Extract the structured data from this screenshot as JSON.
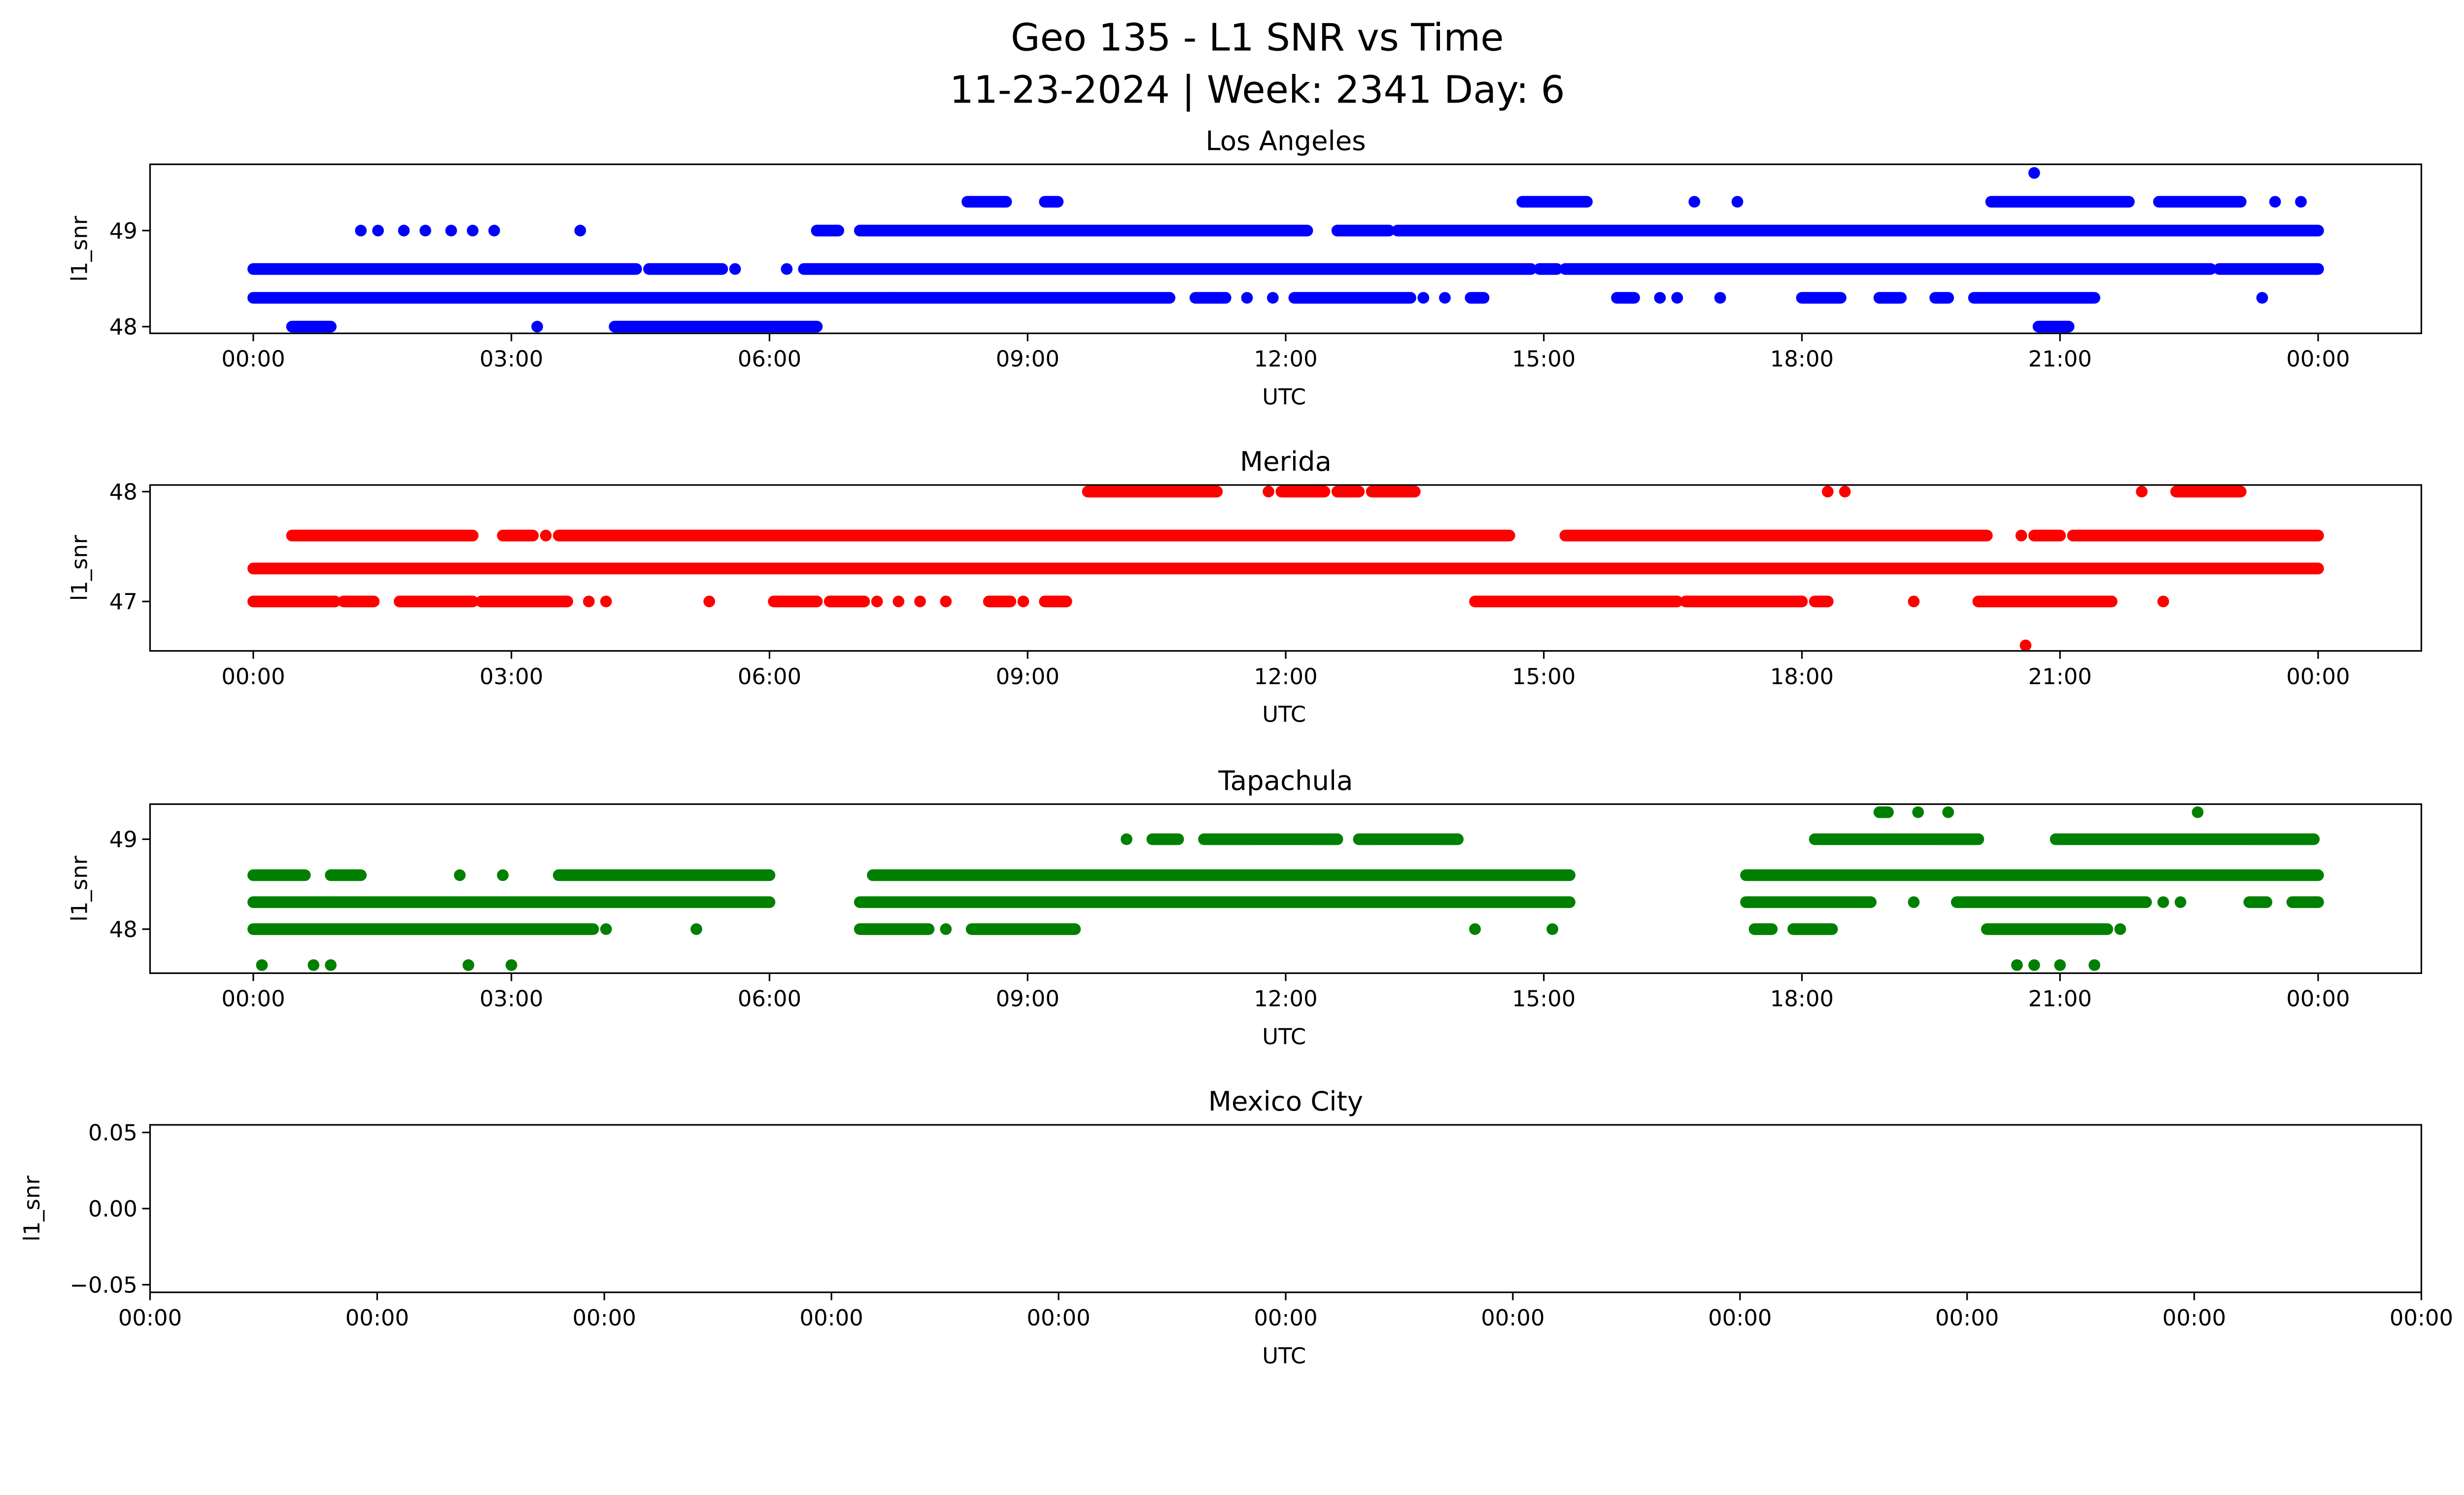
{
  "title_line1": "Geo 135 - L1 SNR vs Time",
  "title_line2": "11-23-2024 | Week: 2341 Day: 6",
  "chart_data": [
    {
      "type": "scatter",
      "title": "Los Angeles",
      "xlabel": "UTC",
      "ylabel": "l1_snr",
      "color": "#0000ff",
      "xlim": [
        -1.2,
        25.2
      ],
      "ylim": [
        47.93,
        49.69
      ],
      "xticks": [
        0,
        3,
        6,
        9,
        12,
        15,
        18,
        21,
        24
      ],
      "xtick_labels": [
        "00:00",
        "03:00",
        "06:00",
        "09:00",
        "12:00",
        "15:00",
        "18:00",
        "21:00",
        "00:00"
      ],
      "yticks": [
        48,
        49
      ],
      "ytick_labels": [
        "48",
        "49"
      ],
      "series": [
        {
          "level": 48.0,
          "intervals": [
            [
              0.45,
              0.9
            ],
            [
              4.2,
              6.55
            ],
            [
              20.75,
              21.1
            ]
          ],
          "points": [
            3.3
          ]
        },
        {
          "level": 48.3,
          "intervals": [
            [
              0,
              7.4
            ],
            [
              7.4,
              10.65
            ],
            [
              10.95,
              11.3
            ],
            [
              12.1,
              13.45
            ],
            [
              14.15,
              14.3
            ],
            [
              15.85,
              16.05
            ],
            [
              18.0,
              18.45
            ],
            [
              18.9,
              19.15
            ],
            [
              19.55,
              19.7
            ],
            [
              20.0,
              21.4
            ]
          ],
          "points": [
            11.55,
            11.85,
            13.6,
            13.85,
            16.35,
            16.55,
            17.05,
            23.35
          ]
        },
        {
          "level": 48.6,
          "intervals": [
            [
              0,
              4.45
            ],
            [
              4.6,
              5.45
            ],
            [
              6.4,
              14.85
            ],
            [
              14.95,
              15.15
            ],
            [
              15.25,
              22.75
            ],
            [
              22.85,
              24
            ]
          ],
          "points": [
            5.6,
            6.2
          ]
        },
        {
          "level": 49.0,
          "intervals": [
            [
              6.55,
              6.8
            ],
            [
              7.05,
              12.25
            ],
            [
              12.6,
              13.2
            ],
            [
              13.3,
              24
            ]
          ],
          "points": [
            1.25,
            1.45,
            1.75,
            2.0,
            2.3,
            2.55,
            2.8,
            3.8
          ]
        },
        {
          "level": 49.3,
          "intervals": [
            [
              8.3,
              8.75
            ],
            [
              9.2,
              9.35
            ],
            [
              14.75,
              15.5
            ],
            [
              20.2,
              21.8
            ],
            [
              22.15,
              23.1
            ]
          ],
          "points": [
            16.75,
            17.25,
            23.5,
            23.8
          ]
        },
        {
          "level": 49.6,
          "intervals": [],
          "points": [
            20.7
          ]
        }
      ]
    },
    {
      "type": "scatter",
      "title": "Merida",
      "xlabel": "UTC",
      "ylabel": "l1_snr",
      "color": "#ff0000",
      "xlim": [
        -1.2,
        25.2
      ],
      "ylim": [
        46.55,
        48.06
      ],
      "xticks": [
        0,
        3,
        6,
        9,
        12,
        15,
        18,
        21,
        24
      ],
      "xtick_labels": [
        "00:00",
        "03:00",
        "06:00",
        "09:00",
        "12:00",
        "15:00",
        "18:00",
        "21:00",
        "00:00"
      ],
      "yticks": [
        47,
        48
      ],
      "ytick_labels": [
        "47",
        "48"
      ],
      "series": [
        {
          "level": 46.6,
          "intervals": [],
          "points": [
            20.6
          ]
        },
        {
          "level": 47.0,
          "intervals": [
            [
              0,
              0.95
            ],
            [
              1.05,
              1.4
            ],
            [
              1.7,
              2.55
            ],
            [
              2.65,
              3.65
            ],
            [
              6.05,
              6.55
            ],
            [
              6.7,
              7.1
            ],
            [
              8.55,
              8.8
            ],
            [
              9.2,
              9.45
            ],
            [
              14.2,
              16.55
            ],
            [
              16.65,
              18.0
            ],
            [
              18.15,
              18.3
            ],
            [
              20.05,
              21.6
            ]
          ],
          "points": [
            3.9,
            4.1,
            5.3,
            7.25,
            7.5,
            7.75,
            8.05,
            8.95,
            19.3,
            22.2
          ]
        },
        {
          "level": 47.3,
          "intervals": [
            [
              0,
              24
            ]
          ],
          "points": []
        },
        {
          "level": 47.6,
          "intervals": [
            [
              0.45,
              2.55
            ],
            [
              2.9,
              3.25
            ],
            [
              3.55,
              14.6
            ],
            [
              15.25,
              20.15
            ],
            [
              20.7,
              21.0
            ],
            [
              21.15,
              24
            ]
          ],
          "points": [
            3.4,
            20.55
          ]
        },
        {
          "level": 48.0,
          "intervals": [
            [
              9.7,
              11.2
            ],
            [
              11.95,
              12.45
            ],
            [
              12.6,
              12.85
            ],
            [
              13.0,
              13.5
            ],
            [
              22.35,
              23.1
            ]
          ],
          "points": [
            11.8,
            18.3,
            18.5,
            21.95
          ]
        }
      ]
    },
    {
      "type": "scatter",
      "title": "Tapachula",
      "xlabel": "UTC",
      "ylabel": "l1_snr",
      "color": "#008000",
      "xlim": [
        -1.2,
        25.2
      ],
      "ylim": [
        47.51,
        49.39
      ],
      "xticks": [
        0,
        3,
        6,
        9,
        12,
        15,
        18,
        21,
        24
      ],
      "xtick_labels": [
        "00:00",
        "03:00",
        "06:00",
        "09:00",
        "12:00",
        "15:00",
        "18:00",
        "21:00",
        "00:00"
      ],
      "yticks": [
        48,
        49
      ],
      "ytick_labels": [
        "48",
        "49"
      ],
      "series": [
        {
          "level": 47.6,
          "intervals": [],
          "points": [
            0.1,
            0.7,
            0.9,
            2.5,
            3.0,
            20.5,
            20.7,
            21.0,
            21.4
          ]
        },
        {
          "level": 48.0,
          "intervals": [
            [
              0,
              3.95
            ],
            [
              7.05,
              7.85
            ],
            [
              8.35,
              9.55
            ],
            [
              17.45,
              17.65
            ],
            [
              17.9,
              18.35
            ],
            [
              20.15,
              21.55
            ]
          ],
          "points": [
            4.1,
            5.15,
            8.05,
            14.2,
            15.1,
            21.7
          ]
        },
        {
          "level": 48.3,
          "intervals": [
            [
              0,
              6.0
            ],
            [
              7.05,
              15.3
            ],
            [
              17.35,
              18.8
            ],
            [
              19.8,
              22.0
            ],
            [
              23.2,
              23.4
            ],
            [
              23.7,
              24
            ]
          ],
          "points": [
            19.3,
            22.2,
            22.4
          ]
        },
        {
          "level": 48.6,
          "intervals": [
            [
              0,
              0.6
            ],
            [
              0.9,
              1.25
            ],
            [
              3.55,
              6.0
            ],
            [
              7.2,
              15.3
            ],
            [
              17.35,
              24
            ]
          ],
          "points": [
            2.4,
            2.9
          ]
        },
        {
          "level": 49.0,
          "intervals": [
            [
              10.45,
              10.75
            ],
            [
              11.05,
              12.6
            ],
            [
              12.85,
              14.0
            ],
            [
              18.15,
              20.05
            ],
            [
              20.95,
              23.95
            ]
          ],
          "points": [
            10.15
          ]
        },
        {
          "level": 49.3,
          "intervals": [
            [
              18.9,
              19.0
            ]
          ],
          "points": [
            19.35,
            19.7,
            22.6
          ]
        }
      ]
    },
    {
      "type": "scatter",
      "title": "Mexico City",
      "xlabel": "UTC",
      "ylabel": "l1_snr",
      "color": "#000000",
      "xlim": [
        0,
        10
      ],
      "ylim": [
        -0.055,
        0.055
      ],
      "xticks": [
        0,
        1,
        2,
        3,
        4,
        5,
        6,
        7,
        8,
        9,
        10
      ],
      "xtick_labels": [
        "00:00",
        "00:00",
        "00:00",
        "00:00",
        "00:00",
        "00:00",
        "00:00",
        "00:00",
        "00:00",
        "00:00",
        "00:00"
      ],
      "yticks": [
        -0.05,
        0.0,
        0.05
      ],
      "ytick_labels": [
        "−0.05",
        "0.00",
        "0.05"
      ],
      "series": []
    }
  ]
}
